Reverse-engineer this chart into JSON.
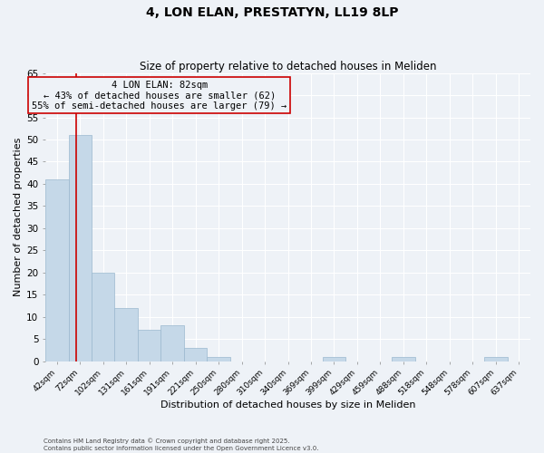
{
  "title": "4, LON ELAN, PRESTATYN, LL19 8LP",
  "subtitle": "Size of property relative to detached houses in Meliden",
  "xlabel": "Distribution of detached houses by size in Meliden",
  "ylabel": "Number of detached properties",
  "bin_labels": [
    "42sqm",
    "72sqm",
    "102sqm",
    "131sqm",
    "161sqm",
    "191sqm",
    "221sqm",
    "250sqm",
    "280sqm",
    "310sqm",
    "340sqm",
    "369sqm",
    "399sqm",
    "429sqm",
    "459sqm",
    "488sqm",
    "518sqm",
    "548sqm",
    "578sqm",
    "607sqm",
    "637sqm"
  ],
  "bar_heights": [
    41,
    51,
    20,
    12,
    7,
    8,
    3,
    1,
    0,
    0,
    0,
    0,
    1,
    0,
    0,
    1,
    0,
    0,
    0,
    1,
    0
  ],
  "bar_color": "#c5d8e8",
  "bar_edgecolor": "#9ab8ce",
  "vline_color": "#cc0000",
  "annotation_text": "4 LON ELAN: 82sqm\n← 43% of detached houses are smaller (62)\n55% of semi-detached houses are larger (79) →",
  "annotation_box_edgecolor": "#cc0000",
  "ylim": [
    0,
    65
  ],
  "yticks": [
    0,
    5,
    10,
    15,
    20,
    25,
    30,
    35,
    40,
    45,
    50,
    55,
    60,
    65
  ],
  "background_color": "#eef2f7",
  "grid_color": "#ffffff",
  "footer_line1": "Contains HM Land Registry data © Crown copyright and database right 2025.",
  "footer_line2": "Contains public sector information licensed under the Open Government Licence v3.0.",
  "vline_sqm": 82,
  "bin0_sqm": 42,
  "bin1_sqm": 72,
  "bin2_sqm": 102
}
